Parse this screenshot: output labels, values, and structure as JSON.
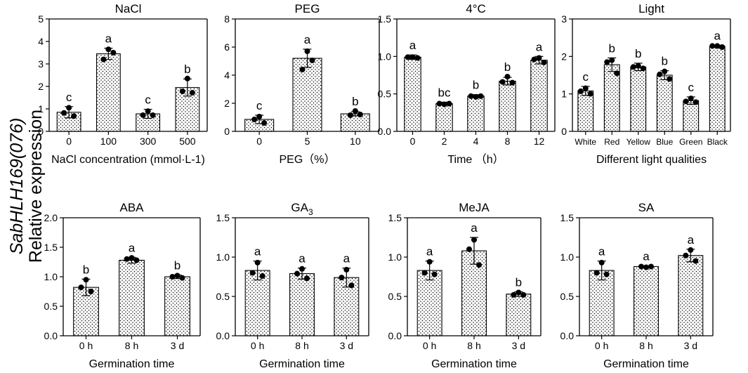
{
  "figure": {
    "y_title_gene": "SabHLH169(076)",
    "y_title_label": "Relative expression"
  },
  "colors": {
    "bar_fill_pattern": "dotted",
    "ink": "#000000",
    "background": "#ffffff"
  },
  "chart_data": [
    {
      "type": "bar",
      "title": "NaCl",
      "xlabel": "NaCl concentration (mmol·L-1)",
      "ylabel": "Relative expression",
      "ylim": [
        0,
        5
      ],
      "yticks": [
        "0",
        "1",
        "2",
        "3",
        "4",
        "5"
      ],
      "categories": [
        "0",
        "100",
        "300",
        "500"
      ],
      "values": [
        0.85,
        3.45,
        0.78,
        1.95
      ],
      "errors": [
        0.25,
        0.25,
        0.2,
        0.38
      ],
      "letters": [
        "c",
        "a",
        "c",
        "b"
      ],
      "points": [
        [
          1.05,
          0.68,
          0.82
        ],
        [
          3.65,
          3.5,
          3.2
        ],
        [
          0.9,
          0.72,
          0.72
        ],
        [
          2.35,
          1.72,
          1.78
        ]
      ]
    },
    {
      "type": "bar",
      "title": "PEG",
      "xlabel": "PEG（%）",
      "ylabel": "Relative expression",
      "ylim": [
        0,
        8
      ],
      "yticks": [
        "0",
        "2",
        "4",
        "6",
        "8"
      ],
      "categories": [
        "0",
        "5",
        "10"
      ],
      "values": [
        0.85,
        5.2,
        1.25
      ],
      "errors": [
        0.3,
        0.65,
        0.15
      ],
      "letters": [
        "c",
        "a",
        "b"
      ],
      "points": [
        [
          1.05,
          0.6,
          0.85
        ],
        [
          5.7,
          5.05,
          4.4
        ],
        [
          1.45,
          1.2,
          1.15
        ]
      ]
    },
    {
      "type": "bar",
      "title": "4°C",
      "xlabel": "Time （h）",
      "ylabel": "Relative expression",
      "ylim": [
        0,
        1.5
      ],
      "yticks": [
        "0.0",
        "0.5",
        "1.0",
        "1.5"
      ],
      "categories": [
        "0",
        "2",
        "4",
        "8",
        "12"
      ],
      "values": [
        0.99,
        0.37,
        0.47,
        0.67,
        0.95
      ],
      "errors": [
        0.03,
        0.02,
        0.02,
        0.05,
        0.05
      ],
      "letters": [
        "a",
        "bc",
        "b",
        "b",
        "a"
      ],
      "points": [
        [
          0.99,
          0.98,
          0.99
        ],
        [
          0.36,
          0.37,
          0.37
        ],
        [
          0.46,
          0.47,
          0.47
        ],
        [
          0.73,
          0.65,
          0.66
        ],
        [
          0.98,
          0.92,
          0.96
        ]
      ]
    },
    {
      "type": "bar",
      "title": "Light",
      "xlabel": "Different light qualities",
      "ylabel": "Relative expression",
      "ylim": [
        0,
        3
      ],
      "yticks": [
        "0",
        "1",
        "2",
        "3"
      ],
      "categories": [
        "White",
        "Red",
        "Yellow",
        "Blue",
        "Green",
        "Black"
      ],
      "values": [
        1.08,
        1.78,
        1.72,
        1.5,
        0.82,
        2.27
      ],
      "errors": [
        0.12,
        0.18,
        0.1,
        0.12,
        0.1,
        0.03
      ],
      "letters": [
        "c",
        "b",
        "b",
        "b",
        "c",
        "a"
      ],
      "points": [
        [
          1.15,
          1.0,
          1.07
        ],
        [
          1.9,
          1.55,
          1.85
        ],
        [
          1.75,
          1.68,
          1.72
        ],
        [
          1.6,
          1.4,
          1.52
        ],
        [
          0.88,
          0.78,
          0.8
        ],
        [
          2.28,
          2.25,
          2.28
        ]
      ]
    },
    {
      "type": "bar",
      "title": "ABA",
      "xlabel": "Germination time",
      "ylabel": "Relative expression",
      "ylim": [
        0,
        2
      ],
      "yticks": [
        "0.0",
        "0.5",
        "1.0",
        "1.5",
        "2.0"
      ],
      "categories": [
        "0 h",
        "8 h",
        "3 d"
      ],
      "values": [
        0.82,
        1.28,
        1.0
      ],
      "errors": [
        0.14,
        0.05,
        0.03
      ],
      "letters": [
        "b",
        "a",
        "b"
      ],
      "points": [
        [
          0.95,
          0.75,
          0.82
        ],
        [
          1.32,
          1.28,
          1.3
        ],
        [
          1.02,
          0.98,
          1.0
        ]
      ]
    },
    {
      "type": "bar",
      "title": "GA3",
      "title_main": "GA",
      "title_sub": "3",
      "xlabel": "Germination time",
      "ylabel": "Relative expression",
      "ylim": [
        0,
        1.5
      ],
      "yticks": [
        "0.0",
        "0.5",
        "1.0",
        "1.5"
      ],
      "categories": [
        "0 h",
        "8 h",
        "3 d"
      ],
      "values": [
        0.83,
        0.79,
        0.74
      ],
      "errors": [
        0.12,
        0.07,
        0.12
      ],
      "letters": [
        "a",
        "a",
        "a"
      ],
      "points": [
        [
          0.93,
          0.76,
          0.8
        ],
        [
          0.85,
          0.73,
          0.79
        ],
        [
          0.84,
          0.64,
          0.74
        ]
      ]
    },
    {
      "type": "bar",
      "title": "MeJA",
      "xlabel": "Germination time",
      "ylabel": "Relative expression",
      "ylim": [
        0,
        1.5
      ],
      "yticks": [
        "0.0",
        "0.5",
        "1.0",
        "1.5"
      ],
      "categories": [
        "0 h",
        "8 h",
        "3 d"
      ],
      "values": [
        0.83,
        1.08,
        0.53
      ],
      "errors": [
        0.12,
        0.17,
        0.03
      ],
      "letters": [
        "a",
        "a",
        "b"
      ],
      "points": [
        [
          0.94,
          0.78,
          0.8
        ],
        [
          1.22,
          0.9,
          1.1
        ],
        [
          0.55,
          0.52,
          0.52
        ]
      ]
    },
    {
      "type": "bar",
      "title": "SA",
      "xlabel": "Germination time",
      "ylabel": "Relative expression",
      "ylim": [
        0,
        1.5
      ],
      "yticks": [
        "0.0",
        "0.5",
        "1.0",
        "1.5"
      ],
      "categories": [
        "0 h",
        "8 h",
        "3 d"
      ],
      "values": [
        0.83,
        0.88,
        1.02
      ],
      "errors": [
        0.12,
        0.01,
        0.08
      ],
      "letters": [
        "a",
        "a",
        "a"
      ],
      "points": [
        [
          0.93,
          0.78,
          0.8
        ],
        [
          0.87,
          0.88,
          0.88
        ],
        [
          1.09,
          0.95,
          1.02
        ]
      ]
    }
  ]
}
